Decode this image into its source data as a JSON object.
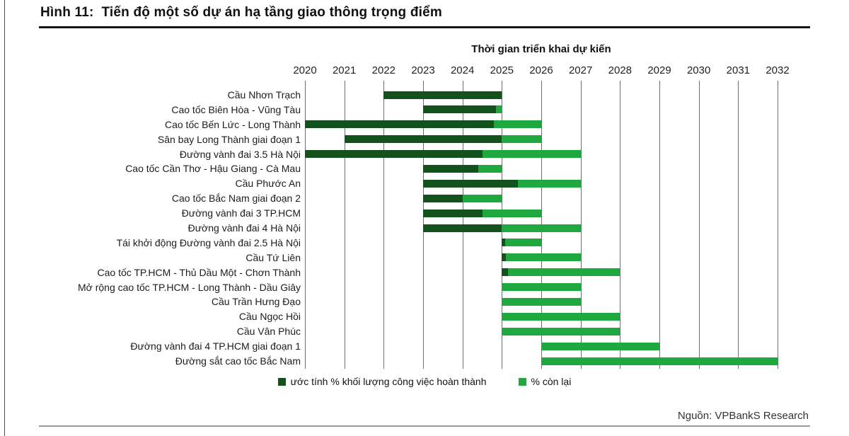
{
  "figure": {
    "title": "Hình 11:  Tiến độ một số dự án hạ tầng giao thông trọng điểm",
    "source": "Nguồn: VPBankS Research"
  },
  "chart_data": {
    "type": "bar",
    "subtype": "gantt",
    "axis_title": "Thời gian triển khai dự kiến",
    "xlim": [
      2020,
      2032
    ],
    "years": [
      2020,
      2021,
      2022,
      2023,
      2024,
      2025,
      2026,
      2027,
      2028,
      2029,
      2030,
      2031,
      2032
    ],
    "grid": "vertical-on",
    "legend_position": "bottom-center",
    "colors": {
      "done": "#14521d",
      "remaining": "#1ea83e"
    },
    "legend": [
      {
        "label": "ước tính % khối lượng công việc hoàn thành",
        "color": "#14521d"
      },
      {
        "label": "% còn lại",
        "color": "#1ea83e"
      }
    ],
    "projects": [
      {
        "name": "Cầu Nhơn Trạch",
        "start": 2022,
        "done_until": 2025,
        "end": 2025
      },
      {
        "name": "Cao tốc Biên Hòa - Vũng Tàu",
        "start": 2023,
        "done_until": 2024.85,
        "end": 2025
      },
      {
        "name": "Cao tốc Bến Lức - Long Thành",
        "start": 2020,
        "done_until": 2024.8,
        "end": 2026
      },
      {
        "name": "Sân bay Long Thành giai đoạn 1",
        "start": 2021,
        "done_until": 2025,
        "end": 2026
      },
      {
        "name": "Đường vành đai 3.5 Hà Nội",
        "start": 2020,
        "done_until": 2024.5,
        "end": 2027
      },
      {
        "name": "Cao tốc Cần Thơ - Hậu Giang - Cà Mau",
        "start": 2023,
        "done_until": 2024.4,
        "end": 2025
      },
      {
        "name": "Cầu Phước An",
        "start": 2023,
        "done_until": 2025.4,
        "end": 2027
      },
      {
        "name": "Cao tốc Bắc Nam giai đoạn 2",
        "start": 2023,
        "done_until": 2024,
        "end": 2025
      },
      {
        "name": "Đường vành đai 3 TP.HCM",
        "start": 2023,
        "done_until": 2024.5,
        "end": 2026
      },
      {
        "name": "Đường vành đai 4 Hà Nội",
        "start": 2023,
        "done_until": 2025,
        "end": 2027
      },
      {
        "name": "Tái khởi động Đường vành đai 2.5 Hà Nội",
        "start": 2025,
        "done_until": 2025.09,
        "end": 2026
      },
      {
        "name": "Cầu Tứ Liên",
        "start": 2025,
        "done_until": 2025.1,
        "end": 2027
      },
      {
        "name": "Cao tốc TP.HCM - Thủ Dầu Một - Chơn Thành",
        "start": 2025,
        "done_until": 2025.15,
        "end": 2028
      },
      {
        "name": "Mở rộng cao tốc TP.HCM - Long Thành - Dầu Giây",
        "start": 2025,
        "done_until": 2025,
        "end": 2027
      },
      {
        "name": "Cầu Trần Hưng Đạo",
        "start": 2025,
        "done_until": 2025,
        "end": 2027
      },
      {
        "name": "Cầu Ngọc Hồi",
        "start": 2025,
        "done_until": 2025,
        "end": 2028
      },
      {
        "name": "Cầu Vân Phúc",
        "start": 2025,
        "done_until": 2025,
        "end": 2028
      },
      {
        "name": "Đường vành đai 4 TP.HCM giai đoạn 1",
        "start": 2026,
        "done_until": 2026,
        "end": 2029
      },
      {
        "name": "Đường sắt cao tốc Bắc Nam",
        "start": 2026,
        "done_until": 2026,
        "end": 2032
      }
    ]
  }
}
